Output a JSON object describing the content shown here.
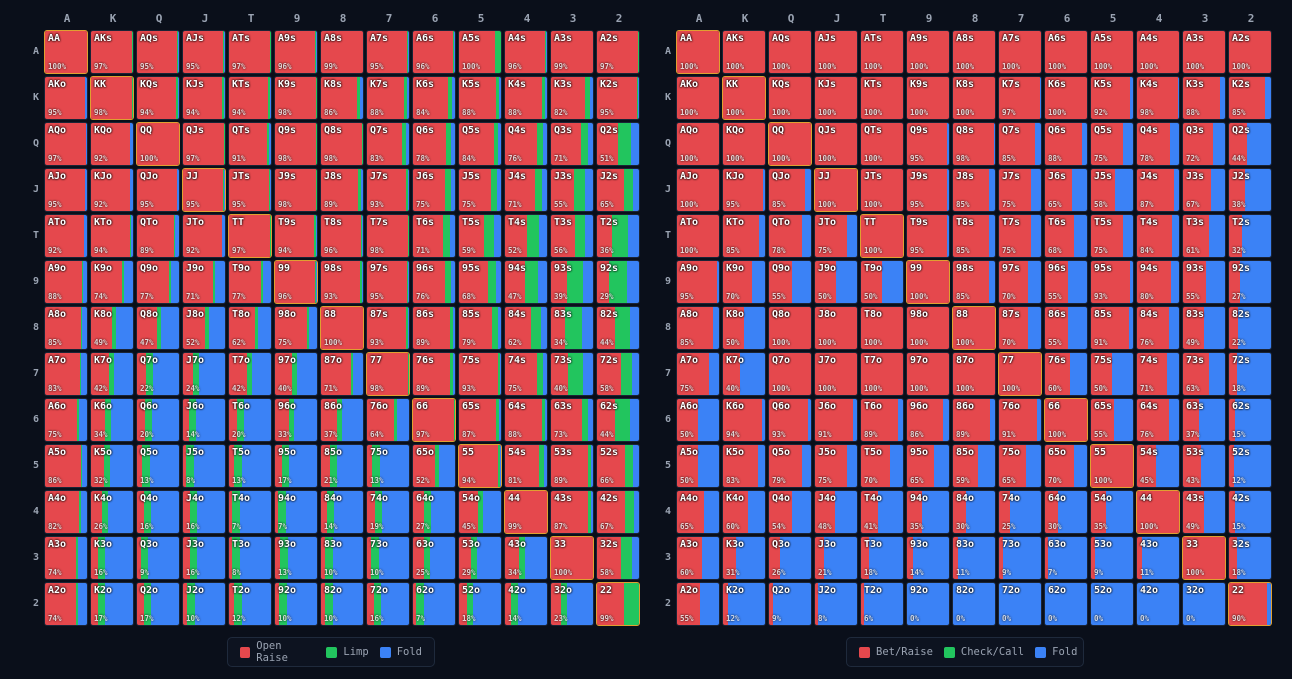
{
  "colors": {
    "raise": "#e5484d",
    "limp": "#22c55e",
    "fold": "#3b82f6",
    "pair_border": "#e0a030"
  },
  "ranks": [
    "A",
    "K",
    "Q",
    "J",
    "T",
    "9",
    "8",
    "7",
    "6",
    "5",
    "4",
    "3",
    "2"
  ],
  "legends": {
    "left": [
      {
        "label": "Open Raise",
        "color": "#e5484d"
      },
      {
        "label": "Limp",
        "color": "#22c55e"
      },
      {
        "label": "Fold",
        "color": "#3b82f6"
      }
    ],
    "right": [
      {
        "label": "Bet/Raise",
        "color": "#e5484d"
      },
      {
        "label": "Check/Call",
        "color": "#22c55e"
      },
      {
        "label": "Fold",
        "color": "#3b82f6"
      }
    ]
  },
  "left_grid": [
    [
      100,
      97,
      95,
      95,
      97,
      96,
      99,
      95,
      96,
      100,
      96,
      99,
      97
    ],
    [
      95,
      98,
      94,
      94,
      94,
      98,
      86,
      88,
      84,
      88,
      88,
      82,
      95
    ],
    [
      97,
      92,
      100,
      97,
      91,
      98,
      98,
      83,
      78,
      84,
      76,
      71,
      51
    ],
    [
      95,
      92,
      95,
      95,
      95,
      98,
      89,
      93,
      75,
      75,
      71,
      55,
      65
    ],
    [
      92,
      94,
      89,
      92,
      97,
      94,
      96,
      98,
      71,
      59,
      52,
      56,
      36
    ],
    [
      88,
      74,
      77,
      71,
      77,
      96,
      93,
      95,
      76,
      68,
      47,
      39,
      29
    ],
    [
      85,
      49,
      47,
      52,
      62,
      75,
      100,
      93,
      89,
      79,
      62,
      34,
      44
    ],
    [
      83,
      42,
      22,
      24,
      42,
      40,
      71,
      98,
      89,
      93,
      75,
      40,
      58
    ],
    [
      75,
      34,
      20,
      14,
      20,
      33,
      37,
      64,
      97,
      87,
      88,
      73,
      44
    ],
    [
      86,
      32,
      13,
      8,
      13,
      17,
      21,
      13,
      52,
      94,
      81,
      89,
      66
    ],
    [
      82,
      26,
      16,
      16,
      7,
      7,
      14,
      19,
      27,
      45,
      99,
      87,
      67
    ],
    [
      74,
      16,
      9,
      16,
      8,
      13,
      10,
      10,
      25,
      29,
      34,
      100,
      58
    ],
    [
      74,
      17,
      17,
      10,
      12,
      10,
      10,
      16,
      7,
      18,
      14,
      23,
      99
    ]
  ],
  "right_grid": [
    [
      100,
      100,
      100,
      100,
      100,
      100,
      100,
      100,
      100,
      100,
      100,
      100,
      100
    ],
    [
      100,
      100,
      100,
      100,
      100,
      100,
      100,
      97,
      100,
      92,
      98,
      88,
      85
    ],
    [
      100,
      100,
      100,
      100,
      100,
      95,
      98,
      85,
      88,
      75,
      78,
      72,
      44
    ],
    [
      100,
      95,
      85,
      100,
      100,
      95,
      85,
      75,
      65,
      58,
      87,
      67,
      38
    ],
    [
      100,
      85,
      78,
      75,
      100,
      95,
      85,
      75,
      68,
      75,
      84,
      61,
      32
    ],
    [
      95,
      70,
      55,
      50,
      50,
      100,
      85,
      70,
      55,
      93,
      80,
      55,
      27
    ],
    [
      85,
      50,
      100,
      100,
      100,
      100,
      100,
      70,
      55,
      91,
      76,
      49,
      22
    ],
    [
      75,
      40,
      100,
      100,
      100,
      100,
      100,
      100,
      60,
      50,
      71,
      63,
      18
    ],
    [
      50,
      94,
      93,
      91,
      89,
      86,
      89,
      91,
      100,
      55,
      76,
      37,
      15
    ],
    [
      50,
      83,
      79,
      75,
      70,
      65,
      59,
      65,
      70,
      100,
      45,
      43,
      12
    ],
    [
      65,
      60,
      54,
      48,
      41,
      35,
      30,
      25,
      30,
      35,
      100,
      49,
      15
    ],
    [
      60,
      31,
      26,
      21,
      18,
      14,
      11,
      9,
      7,
      9,
      11,
      100,
      18
    ],
    [
      55,
      12,
      9,
      8,
      6,
      0,
      0,
      0,
      0,
      0,
      0,
      0,
      90
    ]
  ]
}
